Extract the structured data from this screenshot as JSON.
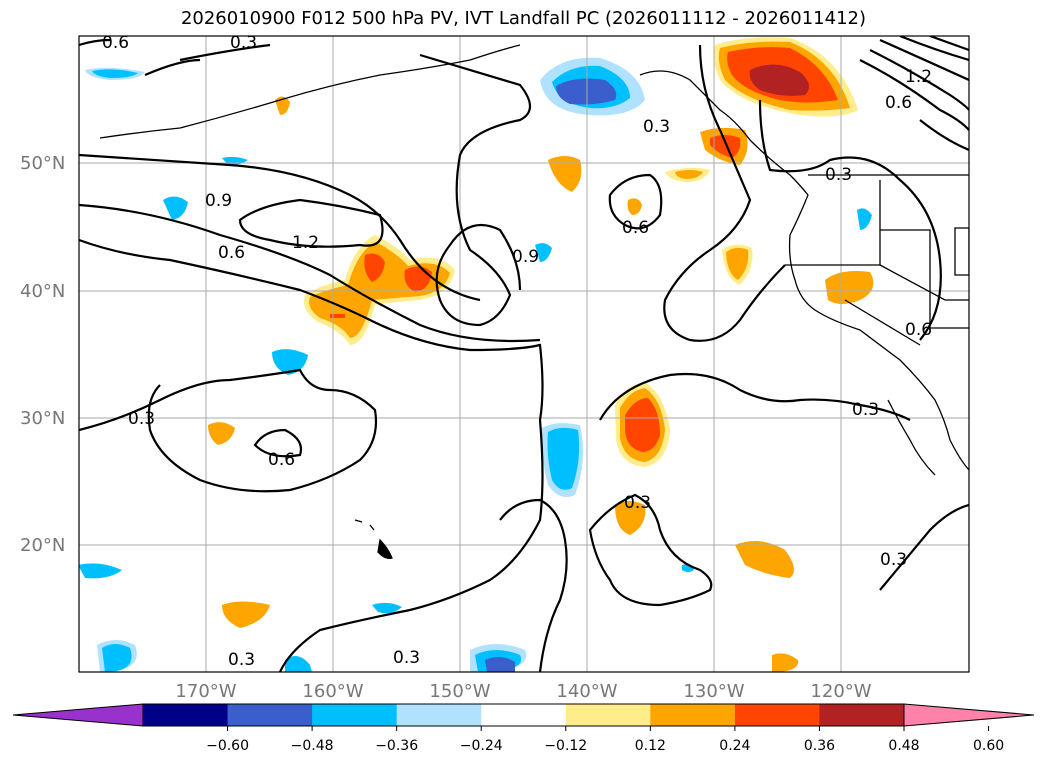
{
  "title": "2026010900 F012 500 hPa PV, IVT Landfall PC (2026011112 - 2026011412)",
  "lat_labels": [
    "50°N",
    "40°N",
    "30°N",
    "20°N"
  ],
  "lon_labels": [
    "170°W",
    "160°W",
    "150°W",
    "140°W",
    "130°W",
    "120°W"
  ],
  "colorbar": {
    "colors": [
      "#9932cc",
      "#00008b",
      "#3a5fcd",
      "#00bfff",
      "#b0e2ff",
      "#ffffff",
      "#ffec8b",
      "#ffa500",
      "#ff4500",
      "#b22222",
      "#ff82ab"
    ],
    "tick_labels": [
      "−0.60",
      "−0.48",
      "−0.36",
      "−0.24",
      "−0.12",
      "0.12",
      "0.24",
      "0.36",
      "0.48",
      "0.60"
    ]
  },
  "contour_labels": [
    "0.6",
    "0.3",
    "0.9",
    "1.2",
    "0.6",
    "0.9",
    "0.6",
    "0.3",
    "0.3",
    "0.6",
    "0.3",
    "0.3",
    "0.3",
    "0.3",
    "0.3",
    "0.3",
    "0.6",
    "0.6",
    "1.2"
  ],
  "colors": {
    "orange": "#ffa500",
    "red_orange": "#ff4500",
    "dark_red": "#b22222",
    "yellow": "#ffec8b",
    "blue": "#00bfff",
    "light_blue": "#b0e2ff",
    "royal_blue": "#3a5fcd"
  }
}
